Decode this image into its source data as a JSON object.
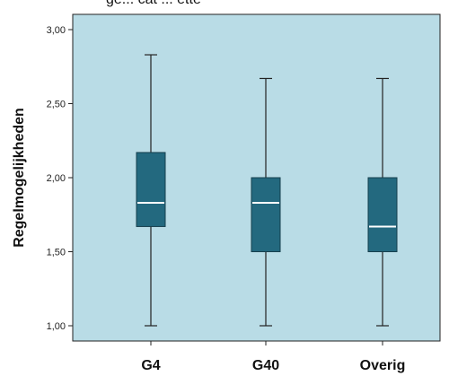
{
  "page_header": {
    "partial_text": "ge... cat ... ette"
  },
  "chart_data": {
    "type": "boxplot",
    "categories": [
      "G4",
      "G40",
      "Overig"
    ],
    "ylabel": "Regelmogelijkheden",
    "xlabel": "",
    "ylim": [
      1.0,
      3.0
    ],
    "yticks": [
      1.0,
      1.5,
      2.0,
      2.5,
      3.0
    ],
    "ytick_labels": [
      "1,00",
      "1,50",
      "2,00",
      "2,50",
      "3,00"
    ],
    "boxes": [
      {
        "category": "G4",
        "min": 1.0,
        "q1": 1.67,
        "median": 1.83,
        "q3": 2.17,
        "max": 2.83
      },
      {
        "category": "G40",
        "min": 1.0,
        "q1": 1.5,
        "median": 1.83,
        "q3": 2.0,
        "max": 2.67
      },
      {
        "category": "Overig",
        "min": 1.0,
        "q1": 1.5,
        "median": 1.67,
        "q3": 2.0,
        "max": 2.67
      }
    ],
    "grid": false,
    "colors": {
      "plot_background": "#b9dce6",
      "box_fill": "#23697f",
      "box_stroke": "#163f4d",
      "median": "#ffffff",
      "whisker": "#222222",
      "axis": "#222222"
    }
  }
}
